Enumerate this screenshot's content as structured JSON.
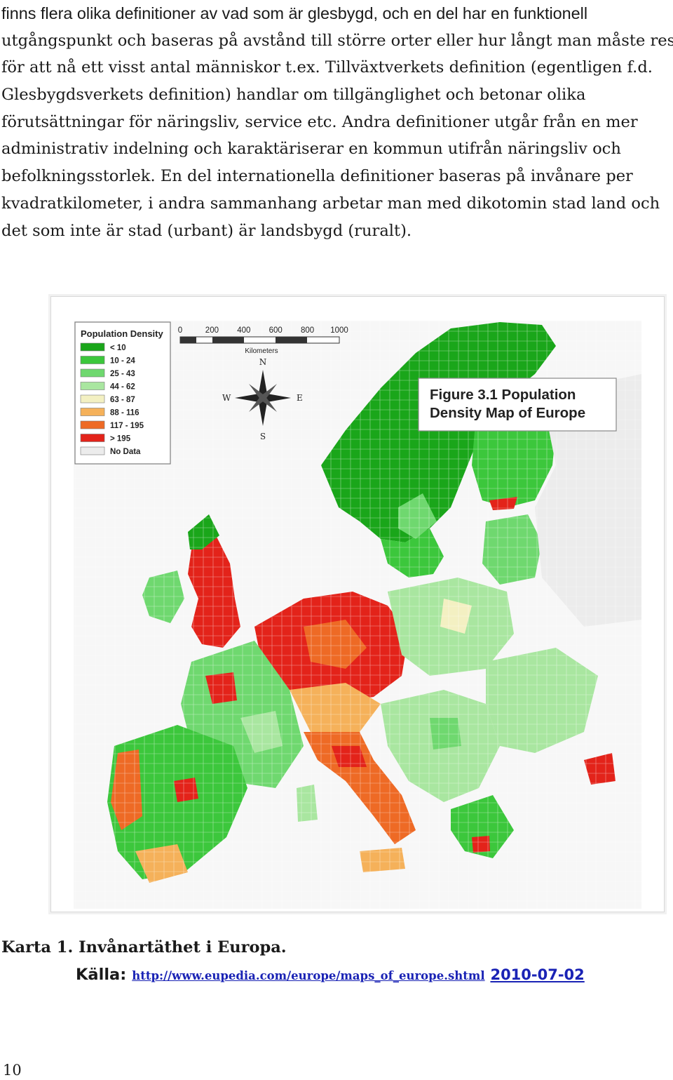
{
  "paragraph": {
    "lines": [
      "finns flera olika definitioner av vad som är glesbygd, och en del har en funktionell",
      "utgångspunkt och baseras på avstånd till större orter eller hur långt man måste resa",
      "för att nå ett visst antal människor  t.ex. Tillväxtverkets definition (egentligen f.d.",
      "Glesbygdsverkets definition) handlar om tillgänglighet och betonar olika",
      "förutsättningar för näringsliv, service etc. Andra definitioner utgår från en mer",
      "administrativ indelning och karaktäriserar en kommun utifrån näringsliv och",
      "befolkningsstorlek. En del internationella definitioner baseras på invånare per",
      "kvadratkilometer, i andra sammanhang arbetar man med dikotomin stad  land och",
      "det som inte är stad (urbant) är landsbygd (ruralt)."
    ]
  },
  "map": {
    "legend": {
      "title": "Population Density",
      "items": [
        {
          "label": "< 10",
          "color": "#1aa61a"
        },
        {
          "label": "10 - 24",
          "color": "#3cc73c"
        },
        {
          "label": "25 - 43",
          "color": "#6fd86f"
        },
        {
          "label": "44 - 62",
          "color": "#a9e6a0"
        },
        {
          "label": "63 - 87",
          "color": "#f3f0c2"
        },
        {
          "label": "88 - 116",
          "color": "#f5b15a"
        },
        {
          "label": "117 - 195",
          "color": "#ee6a25"
        },
        {
          "label": "> 195",
          "color": "#e3231a"
        },
        {
          "label": "No Data",
          "color": "#ececec"
        }
      ]
    },
    "scale": {
      "ticks": [
        "0",
        "200",
        "400",
        "600",
        "800",
        "1000"
      ],
      "unit": "Kilometers"
    },
    "compass": {
      "n": "N",
      "s": "S",
      "e": "E",
      "w": "W"
    },
    "title_lines": [
      "Figure 3.1 Population",
      "Density Map of Europe"
    ]
  },
  "caption": "Karta 1. Invånartäthet i Europa.",
  "source": {
    "label": "Källa:",
    "url": "http://www.eupedia.com/europe/maps_of_europe.shtml",
    "date": "2010-07-02"
  },
  "page_number": "10"
}
